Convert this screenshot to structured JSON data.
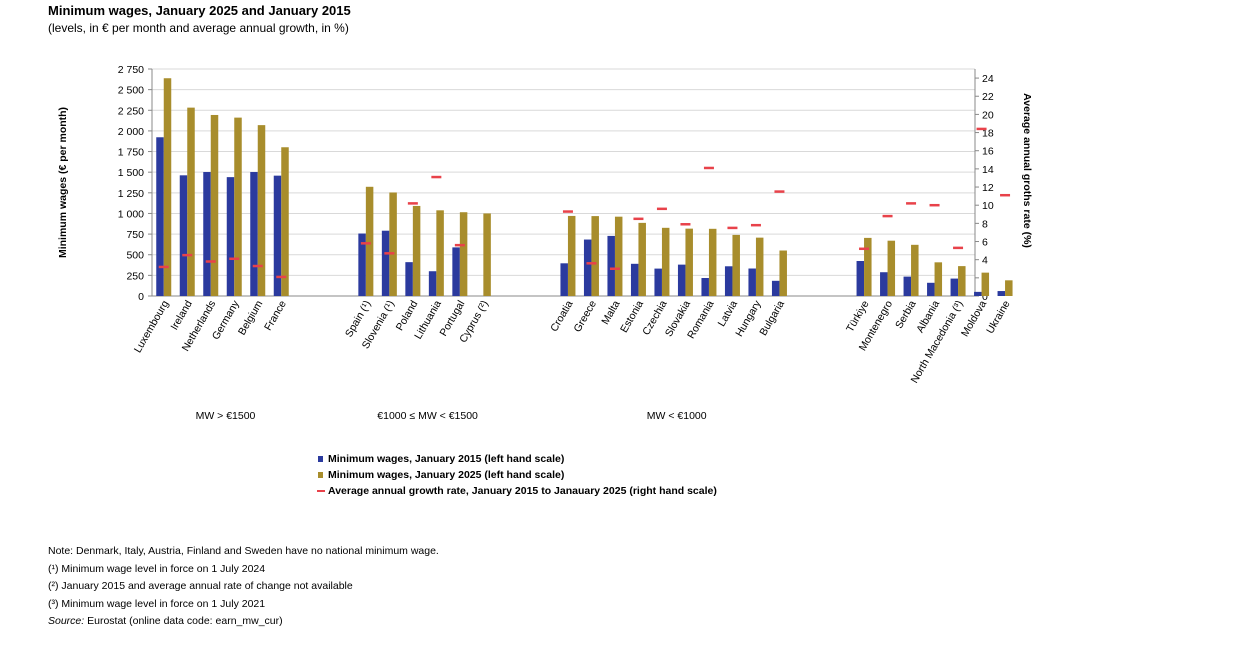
{
  "chart_data": {
    "type": "bar",
    "title": "Minimum wages, January 2025 and January 2015",
    "subtitle": "(levels, in € per month and average annual growth, in %)",
    "ylabel": "Minimum wages (€ per month)",
    "y2label": "Average annual groths rate (%)",
    "ylim": [
      0,
      2750
    ],
    "y2lim": [
      0,
      25
    ],
    "y_ticks": [
      "0",
      "250",
      "500",
      "750",
      "1 000",
      "1 250",
      "1 500",
      "1 750",
      "2 000",
      "2 250",
      "2 500",
      "2 750"
    ],
    "y2_ticks": [
      "0",
      "2",
      "4",
      "6",
      "8",
      "10",
      "12",
      "14",
      "16",
      "18",
      "20",
      "22",
      "24"
    ],
    "grid": true,
    "legend_position": "bottom",
    "colors": {
      "series_2015": "#2b3a9e",
      "series_2025": "#a88d2c",
      "growth": "#e8424a"
    },
    "groups": [
      {
        "label": "MW > €1500",
        "categories": [
          "Luxembourg",
          "Ireland",
          "Netherlands",
          "Germany",
          "Belgium",
          "France"
        ]
      },
      {
        "label": "€1000 ≤ MW < €1500",
        "categories": [
          "Spain (¹)",
          "Slovenia (¹)",
          "Poland",
          "Lithuania",
          "Portugal",
          "Cyprus (²)"
        ]
      },
      {
        "label": "MW < €1000",
        "categories": [
          "Croatia",
          "Greece",
          "Malta",
          "Estonia",
          "Czechia",
          "Slovakia",
          "Romania",
          "Latvia",
          "Hungary",
          "Bulgaria"
        ]
      },
      {
        "label": "",
        "categories": [
          "Türkiye",
          "Montenegro",
          "Serbia",
          "Albania",
          "North Macedonia (³)",
          "Moldova",
          "Ukraine"
        ]
      }
    ],
    "series": [
      {
        "name": "Minimum wages, January 2015 (left hand scale)",
        "values": [
          1923,
          1462,
          1502,
          1440,
          1502,
          1458,
          757,
          791,
          410,
          300,
          589,
          null,
          396,
          684,
          728,
          390,
          332,
          380,
          218,
          360,
          333,
          184,
          424,
          288,
          235,
          160,
          211,
          50,
          60
        ]
      },
      {
        "name": "Minimum wages, January 2025 (left hand scale)",
        "values": [
          2638,
          2282,
          2193,
          2161,
          2070,
          1802,
          1323,
          1254,
          1091,
          1038,
          1015,
          1000,
          970,
          968,
          961,
          886,
          826,
          816,
          814,
          740,
          707,
          551,
          704,
          670,
          620,
          408,
          362,
          283,
          190
        ]
      },
      {
        "name": "Average annual growth rate, January 2015 to Janauary 2025 (right hand scale)",
        "values": [
          3.2,
          4.5,
          3.8,
          4.1,
          3.3,
          2.1,
          5.8,
          4.7,
          10.2,
          13.1,
          5.6,
          null,
          9.3,
          3.6,
          3.0,
          8.5,
          9.6,
          7.9,
          14.1,
          7.5,
          7.8,
          11.5,
          5.2,
          8.8,
          10.2,
          10.0,
          5.3,
          18.4,
          11.1
        ]
      }
    ]
  },
  "notes": {
    "line1": "Note: Denmark, Italy, Austria, Finland and Sweden have no national minimum wage.",
    "line2": "(¹) Minimum wage level in force on 1 July 2024",
    "line3": "(²) January 2015 and average annual rate of change not available",
    "line4": "(³) Minimum wage level in force on 1 July 2021",
    "source_label": "Source:",
    "source_text": " Eurostat (online data code: earn_mw_cur)"
  }
}
